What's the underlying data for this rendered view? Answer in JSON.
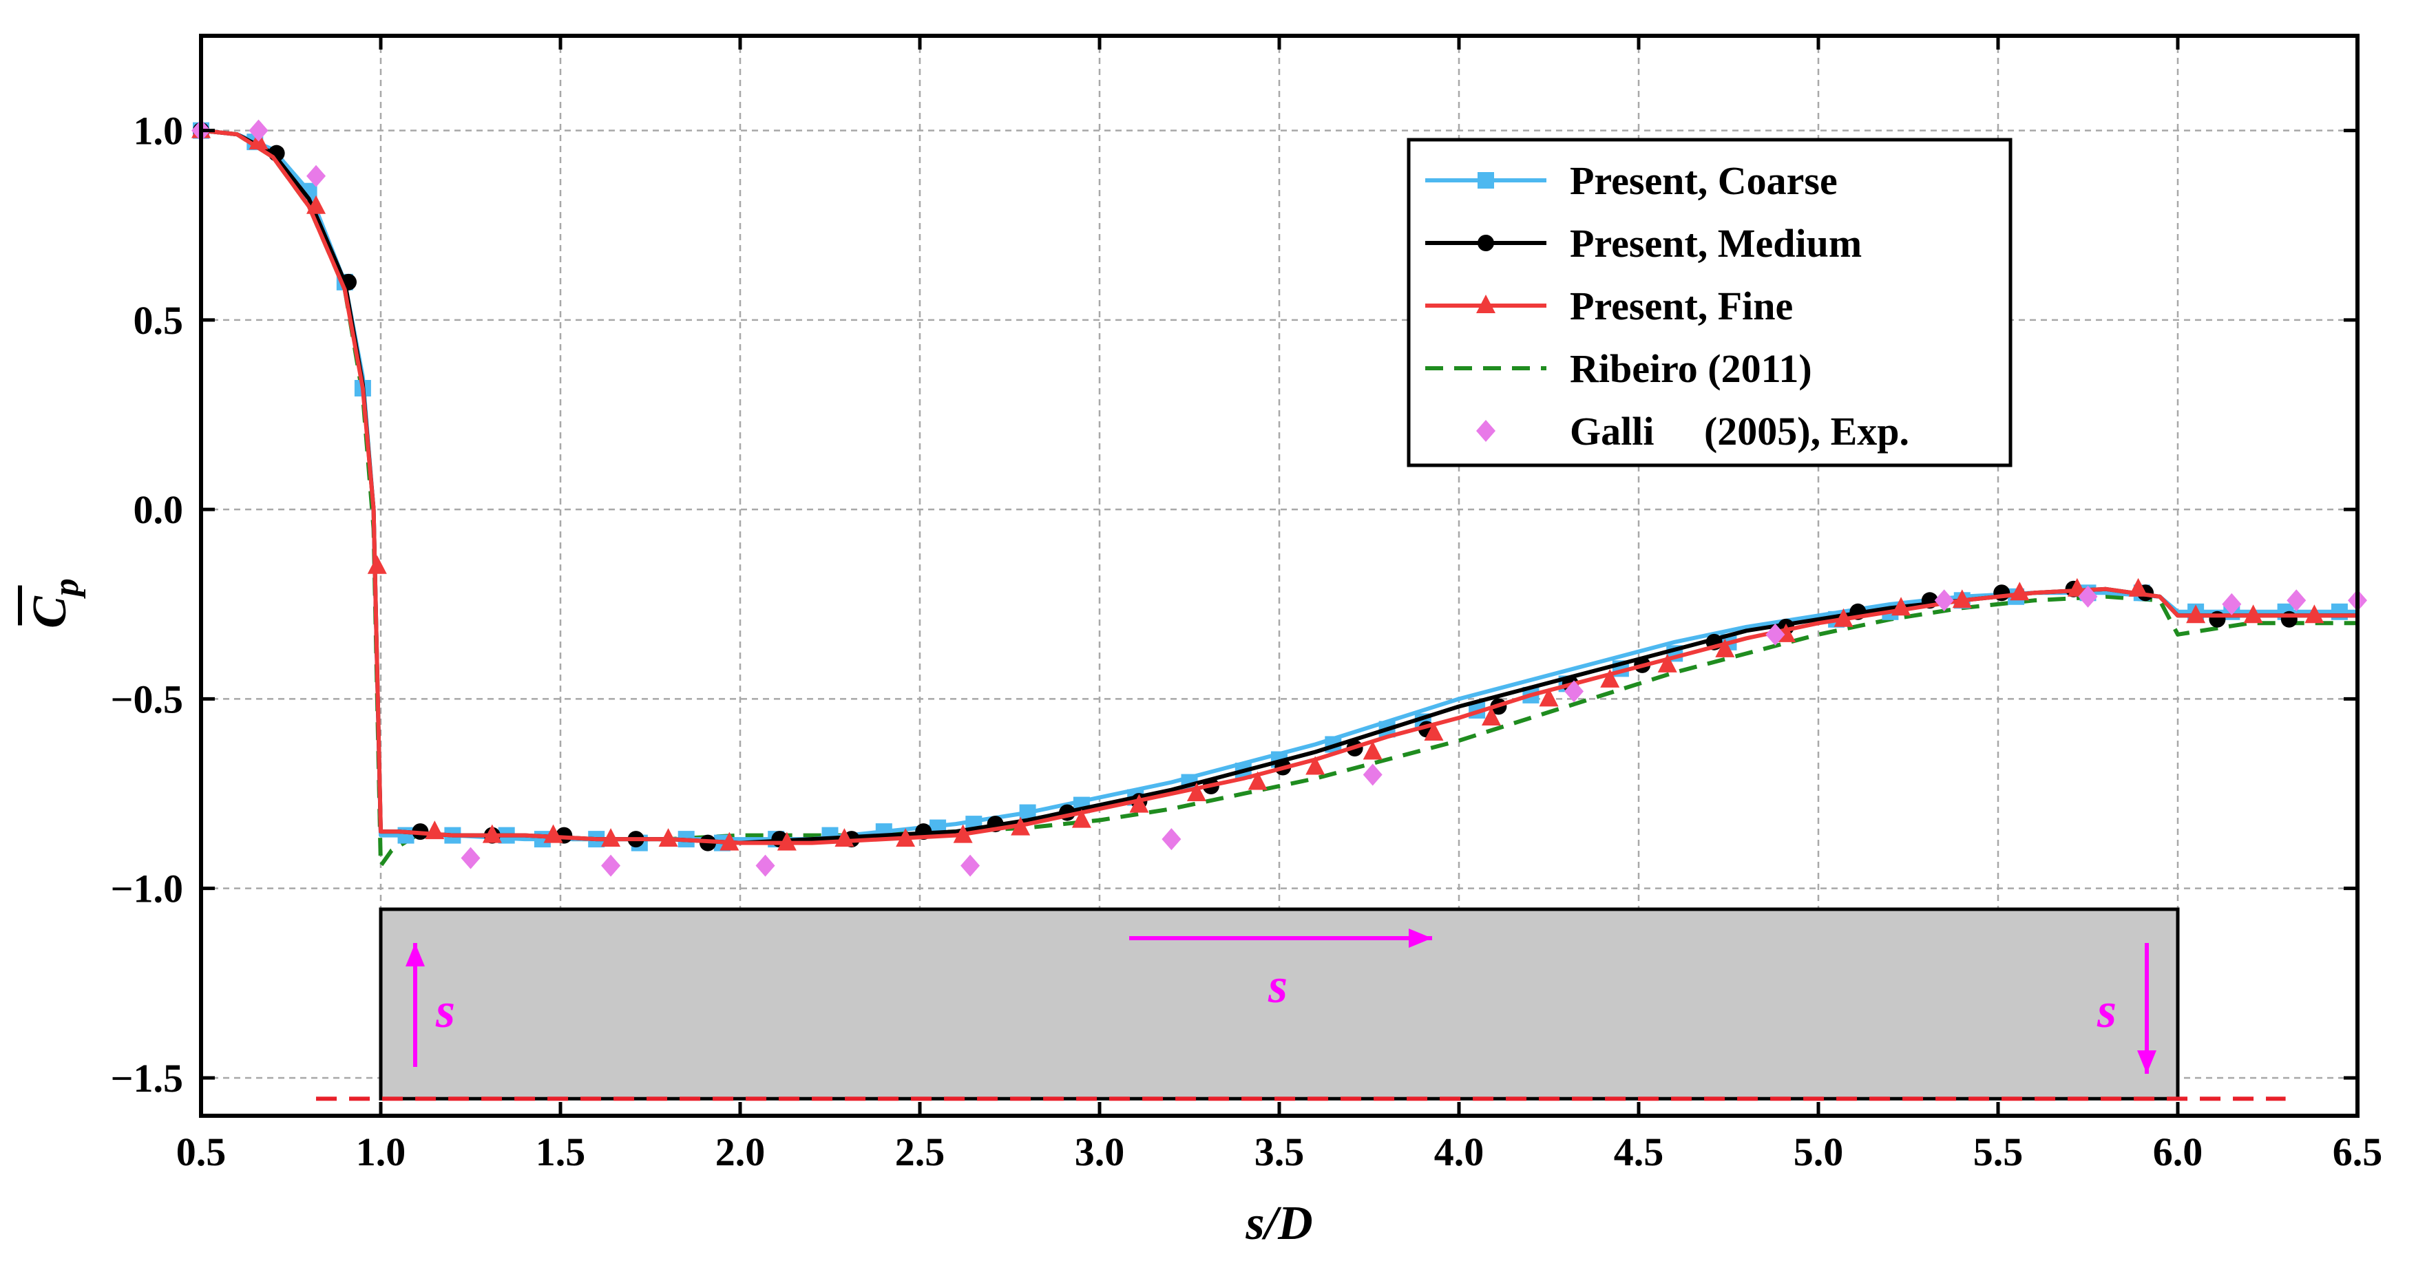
{
  "chart_data": {
    "type": "line",
    "title": "",
    "xlabel": "s/D",
    "ylabel": "C",
    "ylabel_subscript": "p",
    "xlim": [
      0.5,
      6.5
    ],
    "ylim": [
      -1.6,
      1.25
    ],
    "xticks": [
      "0.5",
      "1.0",
      "1.5",
      "2.0",
      "2.5",
      "3.0",
      "3.5",
      "4.0",
      "4.5",
      "5.0",
      "5.5",
      "6.0",
      "6.5"
    ],
    "yticks": [
      "1.0",
      "0.5",
      "0.0",
      "−0.5",
      "−1.0",
      "−1.5"
    ],
    "ytick_values": [
      1.0,
      0.5,
      0.0,
      -0.5,
      -1.0,
      -1.5
    ],
    "grid": true,
    "legend_position": "top-right",
    "colors": {
      "coarse": "#4db8f0",
      "medium": "#000000",
      "fine": "#f03a3a",
      "ribeiro": "#1f8c1f",
      "galli": "#e87ae8",
      "annotation": "#ff00ff",
      "cylinder_fill": "#c8c8c8",
      "ground_line": "#e8202a"
    },
    "series": [
      {
        "name": "Present, Coarse",
        "key": "coarse",
        "style": "line+square",
        "x": [
          0.5,
          0.6,
          0.7,
          0.8,
          0.9,
          0.95,
          0.98,
          1.0,
          1.05,
          1.2,
          1.4,
          1.6,
          1.8,
          2.0,
          2.2,
          2.4,
          2.6,
          2.8,
          3.0,
          3.2,
          3.4,
          3.6,
          3.8,
          4.0,
          4.2,
          4.4,
          4.6,
          4.8,
          5.0,
          5.2,
          5.4,
          5.6,
          5.8,
          5.95,
          6.0,
          6.2,
          6.4,
          6.5
        ],
        "values": [
          1.0,
          0.99,
          0.95,
          0.84,
          0.6,
          0.35,
          0.0,
          -0.86,
          -0.86,
          -0.86,
          -0.87,
          -0.87,
          -0.87,
          -0.87,
          -0.87,
          -0.85,
          -0.83,
          -0.8,
          -0.76,
          -0.72,
          -0.67,
          -0.62,
          -0.56,
          -0.5,
          -0.45,
          -0.4,
          -0.35,
          -0.31,
          -0.28,
          -0.25,
          -0.23,
          -0.22,
          -0.22,
          -0.23,
          -0.27,
          -0.27,
          -0.27,
          -0.27
        ],
        "marker_x": [
          0.5,
          0.65,
          0.8,
          0.9,
          0.95,
          1.07,
          1.2,
          1.35,
          1.45,
          1.6,
          1.72,
          1.85,
          1.95,
          2.1,
          2.25,
          2.4,
          2.55,
          2.65,
          2.8,
          2.95,
          3.1,
          3.25,
          3.4,
          3.5,
          3.65,
          3.8,
          3.9,
          4.05,
          4.2,
          4.3,
          4.45,
          4.6,
          4.75,
          4.9,
          5.05,
          5.2,
          5.4,
          5.55,
          5.75,
          5.9,
          6.05,
          6.15,
          6.3,
          6.45
        ],
        "marker_y": [
          1.0,
          0.97,
          0.84,
          0.6,
          0.32,
          -0.86,
          -0.86,
          -0.86,
          -0.87,
          -0.87,
          -0.88,
          -0.87,
          -0.88,
          -0.87,
          -0.86,
          -0.85,
          -0.84,
          -0.83,
          -0.8,
          -0.78,
          -0.76,
          -0.72,
          -0.69,
          -0.66,
          -0.62,
          -0.58,
          -0.56,
          -0.53,
          -0.49,
          -0.46,
          -0.42,
          -0.38,
          -0.35,
          -0.32,
          -0.29,
          -0.27,
          -0.24,
          -0.23,
          -0.22,
          -0.22,
          -0.27,
          -0.27,
          -0.27,
          -0.27
        ]
      },
      {
        "name": "Present, Medium",
        "key": "medium",
        "style": "line+circle",
        "x": [
          0.5,
          0.6,
          0.7,
          0.8,
          0.9,
          0.95,
          0.98,
          1.0,
          1.05,
          1.2,
          1.4,
          1.6,
          1.8,
          2.0,
          2.2,
          2.4,
          2.6,
          2.8,
          3.0,
          3.2,
          3.4,
          3.6,
          3.8,
          4.0,
          4.2,
          4.4,
          4.6,
          4.8,
          5.0,
          5.2,
          5.4,
          5.6,
          5.8,
          5.95,
          6.0,
          6.2,
          6.4,
          6.5
        ],
        "values": [
          1.0,
          0.99,
          0.94,
          0.82,
          0.6,
          0.33,
          0.0,
          -0.85,
          -0.85,
          -0.86,
          -0.86,
          -0.87,
          -0.87,
          -0.88,
          -0.87,
          -0.86,
          -0.85,
          -0.82,
          -0.78,
          -0.74,
          -0.69,
          -0.64,
          -0.58,
          -0.52,
          -0.47,
          -0.42,
          -0.37,
          -0.32,
          -0.29,
          -0.26,
          -0.24,
          -0.22,
          -0.21,
          -0.23,
          -0.28,
          -0.28,
          -0.28,
          -0.28
        ],
        "marker_x": [
          0.5,
          0.71,
          0.91,
          1.11,
          1.31,
          1.51,
          1.71,
          1.91,
          2.11,
          2.31,
          2.51,
          2.71,
          2.91,
          3.11,
          3.31,
          3.51,
          3.71,
          3.91,
          4.11,
          4.31,
          4.51,
          4.71,
          4.91,
          5.11,
          5.31,
          5.51,
          5.71,
          5.91,
          6.11,
          6.31
        ],
        "marker_y": [
          1.0,
          0.94,
          0.6,
          -0.85,
          -0.86,
          -0.86,
          -0.87,
          -0.88,
          -0.87,
          -0.87,
          -0.85,
          -0.83,
          -0.8,
          -0.77,
          -0.73,
          -0.68,
          -0.63,
          -0.58,
          -0.52,
          -0.46,
          -0.41,
          -0.35,
          -0.31,
          -0.27,
          -0.24,
          -0.22,
          -0.21,
          -0.22,
          -0.29,
          -0.29
        ]
      },
      {
        "name": "Present, Fine",
        "key": "fine",
        "style": "line+triangle",
        "x": [
          0.5,
          0.6,
          0.7,
          0.8,
          0.9,
          0.95,
          0.98,
          1.0,
          1.05,
          1.2,
          1.4,
          1.6,
          1.8,
          2.0,
          2.2,
          2.4,
          2.6,
          2.8,
          3.0,
          3.2,
          3.4,
          3.6,
          3.8,
          4.0,
          4.2,
          4.4,
          4.6,
          4.8,
          5.0,
          5.2,
          5.4,
          5.6,
          5.8,
          5.95,
          6.0,
          6.2,
          6.4,
          6.5
        ],
        "values": [
          1.0,
          0.99,
          0.93,
          0.8,
          0.58,
          0.32,
          0.0,
          -0.85,
          -0.85,
          -0.86,
          -0.86,
          -0.87,
          -0.87,
          -0.88,
          -0.88,
          -0.87,
          -0.86,
          -0.83,
          -0.79,
          -0.75,
          -0.71,
          -0.66,
          -0.6,
          -0.55,
          -0.49,
          -0.44,
          -0.39,
          -0.34,
          -0.3,
          -0.27,
          -0.24,
          -0.22,
          -0.21,
          -0.23,
          -0.28,
          -0.28,
          -0.28,
          -0.28
        ],
        "marker_x": [
          0.5,
          0.66,
          0.82,
          0.99,
          1.15,
          1.31,
          1.48,
          1.64,
          1.8,
          1.97,
          2.13,
          2.29,
          2.46,
          2.62,
          2.78,
          2.95,
          3.11,
          3.27,
          3.44,
          3.6,
          3.76,
          3.93,
          4.09,
          4.25,
          4.42,
          4.58,
          4.74,
          4.91,
          5.07,
          5.23,
          5.4,
          5.56,
          5.72,
          5.89,
          6.05,
          6.21,
          6.38
        ],
        "marker_y": [
          1.0,
          0.97,
          0.8,
          -0.15,
          -0.85,
          -0.86,
          -0.86,
          -0.87,
          -0.87,
          -0.88,
          -0.88,
          -0.87,
          -0.87,
          -0.86,
          -0.84,
          -0.82,
          -0.78,
          -0.75,
          -0.72,
          -0.68,
          -0.64,
          -0.59,
          -0.55,
          -0.5,
          -0.45,
          -0.41,
          -0.37,
          -0.33,
          -0.29,
          -0.26,
          -0.24,
          -0.22,
          -0.21,
          -0.21,
          -0.28,
          -0.28,
          -0.28
        ]
      },
      {
        "name": "Ribeiro (2011)",
        "key": "ribeiro",
        "style": "dashed",
        "x": [
          0.5,
          0.6,
          0.7,
          0.8,
          0.9,
          0.95,
          0.98,
          1.0,
          1.03,
          1.1,
          1.3,
          1.5,
          1.8,
          2.0,
          2.3,
          2.6,
          2.8,
          3.0,
          3.2,
          3.4,
          3.6,
          3.8,
          4.0,
          4.2,
          4.4,
          4.6,
          4.8,
          5.0,
          5.2,
          5.4,
          5.6,
          5.8,
          5.95,
          6.0,
          6.2,
          6.4,
          6.5
        ],
        "values": [
          1.0,
          0.99,
          0.93,
          0.8,
          0.58,
          0.3,
          -0.05,
          -0.94,
          -0.9,
          -0.86,
          -0.86,
          -0.87,
          -0.87,
          -0.86,
          -0.86,
          -0.85,
          -0.84,
          -0.82,
          -0.79,
          -0.75,
          -0.71,
          -0.66,
          -0.61,
          -0.55,
          -0.49,
          -0.43,
          -0.38,
          -0.33,
          -0.29,
          -0.26,
          -0.24,
          -0.23,
          -0.24,
          -0.33,
          -0.3,
          -0.3,
          -0.3
        ]
      },
      {
        "name": "Galli     (2005), Exp.",
        "key": "galli",
        "style": "diamond",
        "x": [
          0.5,
          0.66,
          0.82,
          1.25,
          1.64,
          2.07,
          2.64,
          3.2,
          3.76,
          4.32,
          4.88,
          5.35,
          5.75,
          6.15,
          6.33,
          6.5
        ],
        "values": [
          1.0,
          1.0,
          0.88,
          -0.92,
          -0.94,
          -0.94,
          -0.94,
          -0.87,
          -0.7,
          -0.48,
          -0.33,
          -0.24,
          -0.23,
          -0.25,
          -0.24,
          -0.24
        ]
      }
    ],
    "annotations": {
      "s_symbol": "s",
      "cylinder_x_range": [
        1.0,
        6.0
      ],
      "cylinder_y_range": [
        -1.555,
        -1.055
      ],
      "ground_y": -1.555,
      "ground_x_range": [
        0.82,
        6.3
      ]
    }
  }
}
